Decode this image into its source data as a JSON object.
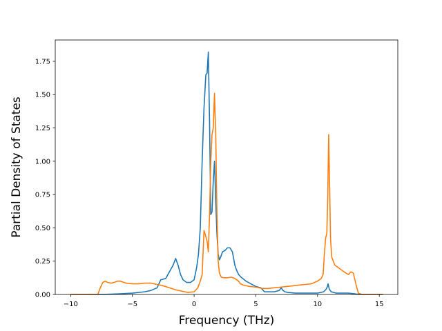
{
  "chart_data": {
    "type": "line",
    "title": "",
    "xlabel": "Frequency (THz)",
    "ylabel": "Partial Density of States",
    "xlim": [
      -11.25,
      16.5
    ],
    "ylim": [
      0,
      1.91
    ],
    "grid": false,
    "legend": "none",
    "xticks": [
      -10,
      -5,
      0,
      5,
      10,
      15
    ],
    "xtick_labels": [
      "−10",
      "−5",
      "0",
      "5",
      "10",
      "15"
    ],
    "yticks": [
      0.0,
      0.25,
      0.5,
      0.75,
      1.0,
      1.25,
      1.5,
      1.75
    ],
    "ytick_labels": [
      "0.00",
      "0.25",
      "0.50",
      "0.75",
      "1.00",
      "1.25",
      "1.50",
      "1.75"
    ],
    "series": [
      {
        "color": "#1f77b4",
        "x": [
          -10,
          -7.5,
          -6,
          -5,
          -4,
          -3.5,
          -3,
          -2.7,
          -2.3,
          -2,
          -1.7,
          -1.5,
          -1.3,
          -1.1,
          -0.9,
          -0.6,
          -0.3,
          0,
          0.2,
          0.35,
          0.5,
          0.65,
          0.8,
          0.95,
          1.05,
          1.15,
          1.25,
          1.35,
          1.45,
          1.55,
          1.65,
          1.75,
          1.85,
          1.95,
          2.05,
          2.15,
          2.3,
          2.5,
          2.7,
          2.9,
          3.1,
          3.3,
          3.45,
          3.6,
          3.8,
          4.2,
          4.6,
          5.0,
          5.4,
          5.7,
          6.0,
          6.5,
          6.9,
          7.05,
          7.2,
          7.35,
          7.6,
          8.2,
          9.0,
          10.0,
          10.5,
          10.7,
          10.8,
          10.85,
          10.95,
          11.1,
          11.5,
          12.5,
          13.0,
          13.4,
          15.3
        ],
        "y": [
          0,
          0,
          0.005,
          0.01,
          0.02,
          0.03,
          0.05,
          0.11,
          0.12,
          0.17,
          0.22,
          0.27,
          0.22,
          0.15,
          0.11,
          0.09,
          0.09,
          0.11,
          0.2,
          0.3,
          0.5,
          1.0,
          1.4,
          1.65,
          1.66,
          1.82,
          1.3,
          0.6,
          0.62,
          0.85,
          1.0,
          0.7,
          0.45,
          0.3,
          0.26,
          0.28,
          0.32,
          0.33,
          0.35,
          0.35,
          0.32,
          0.22,
          0.18,
          0.15,
          0.13,
          0.1,
          0.08,
          0.06,
          0.05,
          0.02,
          0.02,
          0.02,
          0.03,
          0.05,
          0.03,
          0.02,
          0.015,
          0.01,
          0.01,
          0.01,
          0.02,
          0.04,
          0.06,
          0.08,
          0.04,
          0.02,
          0.01,
          0.01,
          0.005,
          0.0,
          0.0
        ]
      },
      {
        "color": "#ff7f0e",
        "x": [
          -10,
          -7.8,
          -7.6,
          -7.4,
          -7.2,
          -7.0,
          -6.7,
          -6.5,
          -6.2,
          -6.0,
          -5.5,
          -5.0,
          -4.5,
          -4.0,
          -3.5,
          -3.0,
          -2.5,
          -2.0,
          -1.5,
          -1.0,
          -0.5,
          0,
          0.3,
          0.5,
          0.65,
          0.8,
          0.9,
          1.05,
          1.15,
          1.25,
          1.35,
          1.45,
          1.55,
          1.65,
          1.75,
          1.85,
          1.95,
          2.05,
          2.2,
          2.4,
          2.7,
          3.0,
          3.3,
          3.6,
          3.75,
          4.0,
          4.5,
          5.0,
          5.5,
          6.0,
          6.5,
          7.0,
          7.5,
          8.0,
          8.5,
          9.0,
          9.5,
          10.0,
          10.3,
          10.45,
          10.55,
          10.65,
          10.75,
          10.82,
          10.9,
          10.98,
          11.05,
          11.15,
          11.4,
          11.7,
          12.0,
          12.3,
          12.5,
          12.7,
          12.9,
          13.1,
          13.3,
          13.6,
          15.3
        ],
        "y": [
          0,
          0,
          0.05,
          0.09,
          0.1,
          0.09,
          0.085,
          0.09,
          0.1,
          0.1,
          0.085,
          0.08,
          0.08,
          0.085,
          0.085,
          0.075,
          0.065,
          0.05,
          0.035,
          0.025,
          0.015,
          0.02,
          0.05,
          0.1,
          0.15,
          0.48,
          0.45,
          0.4,
          0.32,
          0.6,
          1.0,
          1.2,
          1.25,
          1.51,
          1.2,
          0.6,
          0.25,
          0.16,
          0.13,
          0.125,
          0.125,
          0.13,
          0.12,
          0.1,
          0.08,
          0.07,
          0.06,
          0.055,
          0.045,
          0.045,
          0.05,
          0.055,
          0.06,
          0.065,
          0.07,
          0.075,
          0.08,
          0.1,
          0.12,
          0.15,
          0.3,
          0.42,
          0.46,
          0.7,
          1.2,
          0.8,
          0.42,
          0.28,
          0.22,
          0.2,
          0.18,
          0.16,
          0.15,
          0.17,
          0.16,
          0.08,
          0.01,
          0.0,
          0.0
        ]
      }
    ]
  }
}
